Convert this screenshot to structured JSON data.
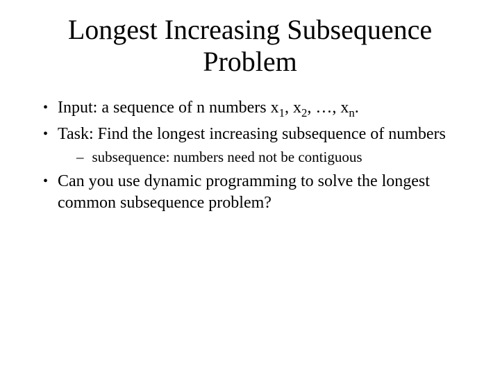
{
  "title": "Longest Increasing Subsequence Problem",
  "bullets": [
    {
      "text_html": "Input: a sequence of n numbers x<sub>1</sub>, x<sub>2</sub>, …, x<sub>n</sub>."
    },
    {
      "text_html": "Task: Find the longest increasing subsequence of numbers",
      "sub": [
        {
          "text": "subsequence: numbers need not be contiguous"
        }
      ]
    },
    {
      "text_html": "Can you use dynamic programming to solve the longest common subsequence problem?"
    }
  ],
  "style": {
    "background_color": "#ffffff",
    "text_color": "#000000",
    "title_fontsize": 40,
    "body_fontsize": 24,
    "sub_fontsize": 21,
    "font_family": "Times New Roman",
    "bullet_char": "•",
    "sub_bullet_char": "–"
  }
}
